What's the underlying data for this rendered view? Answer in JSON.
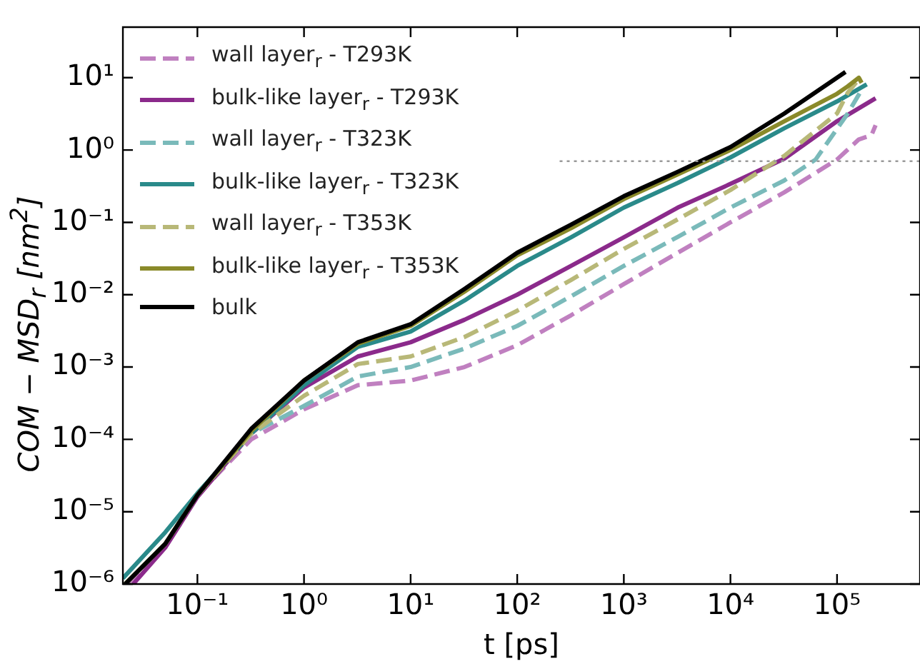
{
  "chart_data": {
    "type": "line",
    "xlabel": "t [ps]",
    "ylabel": "COM − MSD$_{r}$ [nm$^{2}$]",
    "log": "xy",
    "grid": false,
    "legend": "top left",
    "marker": "none",
    "xlim": [
      0.02,
      600000
    ],
    "ylim": [
      1e-06,
      50
    ],
    "xticks": [
      {
        "value": 0.1,
        "label": "10⁻¹"
      },
      {
        "value": 1,
        "label": "10⁰"
      },
      {
        "value": 10,
        "label": "10¹"
      },
      {
        "value": 100,
        "label": "10²"
      },
      {
        "value": 1000,
        "label": "10³"
      },
      {
        "value": 10000,
        "label": "10⁴"
      },
      {
        "value": 100000,
        "label": "10⁵"
      }
    ],
    "yticks": [
      {
        "value": 1e-06,
        "label": "10⁻⁶"
      },
      {
        "value": 1e-05,
        "label": "10⁻⁵"
      },
      {
        "value": 0.0001,
        "label": "10⁻⁴"
      },
      {
        "value": 0.001,
        "label": "10⁻³"
      },
      {
        "value": 0.01,
        "label": "10⁻²"
      },
      {
        "value": 0.1,
        "label": "10⁻¹"
      },
      {
        "value": 1,
        "label": "10⁰"
      },
      {
        "value": 10,
        "label": "10¹"
      }
    ],
    "series": [
      {
        "name": "wall layer$_{r}$ - T293K",
        "color": "#c080c0",
        "line_style": "dashed",
        "x": [
          0.022,
          0.05,
          0.1,
          0.32,
          1,
          3.2,
          10,
          32,
          100,
          320,
          1000,
          3200,
          10000,
          32000,
          100000,
          160000,
          210000,
          230000
        ],
        "values": [
          1e-06,
          3.5e-06,
          1.7e-05,
          0.0001,
          0.00026,
          0.00056,
          0.00065,
          0.001,
          0.002,
          0.0052,
          0.014,
          0.038,
          0.1,
          0.26,
          0.74,
          1.4,
          1.6,
          2.2
        ]
      },
      {
        "name": "bulk-like layer$_{r}$ -  T293K",
        "color": "#8b2a8b",
        "line_style": "solid",
        "x": [
          0.025,
          0.05,
          0.1,
          0.32,
          1,
          3.2,
          10,
          32,
          100,
          320,
          1000,
          3200,
          10000,
          32000,
          100000,
          230000
        ],
        "values": [
          1e-06,
          3.2e-06,
          1.6e-05,
          0.00012,
          0.00052,
          0.0014,
          0.0022,
          0.0045,
          0.01,
          0.025,
          0.062,
          0.16,
          0.34,
          0.76,
          2.5,
          5.2
        ]
      },
      {
        "name": "wall layer$_{r}$ - T323K",
        "color": "#7ababa",
        "line_style": "dashed",
        "x": [
          0.021,
          0.05,
          0.1,
          0.32,
          1,
          3.2,
          10,
          32,
          100,
          320,
          1000,
          3200,
          10000,
          32000,
          63000,
          126000,
          174000
        ],
        "values": [
          1e-06,
          3.6e-06,
          1.7e-05,
          0.00012,
          0.00029,
          0.00074,
          0.001,
          0.0018,
          0.0037,
          0.0095,
          0.025,
          0.063,
          0.16,
          0.38,
          0.74,
          3.2,
          7.2
        ]
      },
      {
        "name": "bulk-like layer$_{r}$ -  T323K",
        "color": "#2a8a8a",
        "line_style": "solid",
        "x": [
          0.02,
          0.05,
          0.1,
          0.32,
          1,
          3.2,
          10,
          32,
          100,
          320,
          1000,
          3200,
          10000,
          32000,
          100000,
          190000
        ],
        "values": [
          1.2e-06,
          5.2e-06,
          1.8e-05,
          0.00012,
          0.00056,
          0.0019,
          0.0031,
          0.0083,
          0.025,
          0.062,
          0.16,
          0.35,
          0.79,
          2.0,
          4.7,
          8.1
        ]
      },
      {
        "name": "wall layer$_{r}$ - T353K",
        "color": "#b8b878",
        "line_style": "dashed",
        "x": [
          0.021,
          0.05,
          0.1,
          0.32,
          1,
          3.2,
          10,
          32,
          100,
          320,
          1000,
          3200,
          10000,
          32000,
          100000,
          126000,
          160000
        ],
        "values": [
          1e-06,
          3.6e-06,
          1.7e-05,
          0.00012,
          0.0004,
          0.0011,
          0.0014,
          0.0026,
          0.006,
          0.016,
          0.043,
          0.11,
          0.28,
          0.83,
          3.2,
          6.2,
          9.5
        ]
      },
      {
        "name": "bulk-like layer$_{r}$ -  T353K",
        "color": "#8a8a2a",
        "line_style": "solid",
        "x": [
          0.021,
          0.05,
          0.1,
          0.32,
          1,
          3.2,
          10,
          32,
          100,
          320,
          1000,
          3200,
          10000,
          32000,
          100000,
          126000,
          160000,
          170000
        ],
        "values": [
          1e-06,
          3.6e-06,
          1.7e-05,
          0.00013,
          0.00065,
          0.0021,
          0.0037,
          0.011,
          0.035,
          0.083,
          0.21,
          0.46,
          1.0,
          2.5,
          6.0,
          7.6,
          10,
          8.5
        ]
      },
      {
        "name": "bulk",
        "color": "#000000",
        "line_style": "solid",
        "x": [
          0.021,
          0.05,
          0.1,
          0.32,
          1,
          3.2,
          10,
          32,
          100,
          320,
          1000,
          3200,
          10000,
          32000,
          120000
        ],
        "values": [
          1e-06,
          3.6e-06,
          1.7e-05,
          0.00014,
          0.00065,
          0.0022,
          0.0039,
          0.012,
          0.038,
          0.093,
          0.23,
          0.5,
          1.1,
          3.2,
          12
        ]
      },
      {
        "color": "#999999",
        "line_style": "dotted",
        "x": [
          250,
          600000
        ],
        "values": [
          0.7,
          0.7
        ]
      }
    ]
  }
}
